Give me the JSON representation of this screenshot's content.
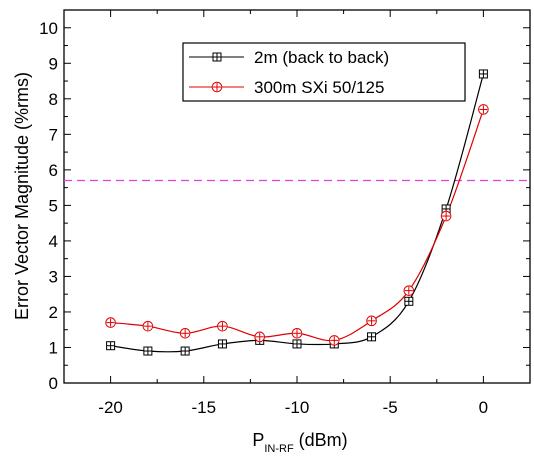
{
  "chart_data": {
    "type": "line",
    "xlabel_main": "P",
    "xlabel_sub": "IN-RF",
    "xlabel_unit": " (dBm)",
    "ylabel": "Error Vector Magnitude (%rms)",
    "xlim": [
      -22.5,
      2.5
    ],
    "ylim": [
      0,
      10.5
    ],
    "x_ticks": [
      -20,
      -15,
      -10,
      -5,
      0
    ],
    "y_ticks": [
      0,
      1,
      2,
      3,
      4,
      5,
      6,
      7,
      8,
      9,
      10
    ],
    "threshold_line": {
      "y": 5.7,
      "color": "#e040e0",
      "style": "dashed"
    },
    "legend_position": "top-right",
    "grid": false,
    "series": [
      {
        "name": "2m (back to back)",
        "color": "#000000",
        "marker": "square-plus",
        "x": [
          -20,
          -18,
          -16,
          -14,
          -12,
          -10,
          -8,
          -6,
          -4,
          -2,
          0
        ],
        "y": [
          1.05,
          0.9,
          0.9,
          1.1,
          1.2,
          1.1,
          1.1,
          1.3,
          2.3,
          4.9,
          8.7
        ]
      },
      {
        "name": "300m SXi 50/125",
        "color": "#e00000",
        "marker": "circle-plus",
        "x": [
          -20,
          -18,
          -16,
          -14,
          -12,
          -10,
          -8,
          -6,
          -4,
          -2,
          0
        ],
        "y": [
          1.7,
          1.6,
          1.4,
          1.6,
          1.3,
          1.4,
          1.2,
          1.75,
          2.6,
          4.7,
          7.7
        ]
      }
    ]
  }
}
